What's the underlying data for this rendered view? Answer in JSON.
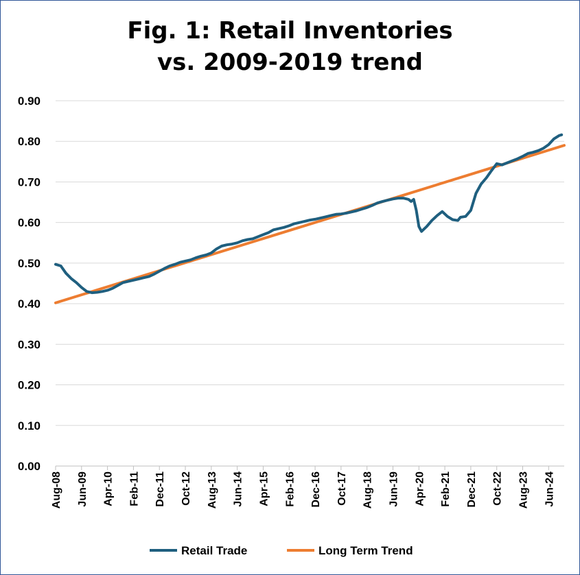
{
  "chart_data": {
    "type": "line",
    "title_line1": "Fig. 1: Retail Inventories",
    "title_line2": "vs. 2009-2019 trend",
    "xlabel": "",
    "ylabel": "",
    "x_start": "Aug-08",
    "x_end": "Dec-24",
    "ylim": [
      0.0,
      0.9
    ],
    "y_ticks": [
      "0.00",
      "0.10",
      "0.20",
      "0.30",
      "0.40",
      "0.50",
      "0.60",
      "0.70",
      "0.80",
      "0.90"
    ],
    "x_tick_labels": [
      "Aug-08",
      "Jun-09",
      "Apr-10",
      "Feb-11",
      "Dec-11",
      "Oct-12",
      "Aug-13",
      "Jun-14",
      "Apr-15",
      "Feb-16",
      "Dec-16",
      "Oct-17",
      "Aug-18",
      "Jun-19",
      "Apr-20",
      "Feb-21",
      "Dec-21",
      "Oct-22",
      "Aug-23",
      "Jun-24"
    ],
    "grid": "horizontal",
    "legend_placement": "bottom",
    "series": [
      {
        "name": "Retail Trade",
        "color": "#1f5f7f",
        "points": [
          [
            "Aug-08",
            0.497
          ],
          [
            "Oct-08",
            0.493
          ],
          [
            "Dec-08",
            0.475
          ],
          [
            "Feb-09",
            0.462
          ],
          [
            "Apr-09",
            0.452
          ],
          [
            "Jun-09",
            0.44
          ],
          [
            "Aug-09",
            0.43
          ],
          [
            "Oct-09",
            0.427
          ],
          [
            "Dec-09",
            0.428
          ],
          [
            "Feb-10",
            0.43
          ],
          [
            "Apr-10",
            0.433
          ],
          [
            "Jun-10",
            0.438
          ],
          [
            "Aug-10",
            0.445
          ],
          [
            "Oct-10",
            0.452
          ],
          [
            "Dec-10",
            0.455
          ],
          [
            "Feb-11",
            0.458
          ],
          [
            "Apr-11",
            0.461
          ],
          [
            "Jun-11",
            0.464
          ],
          [
            "Aug-11",
            0.467
          ],
          [
            "Oct-11",
            0.473
          ],
          [
            "Dec-11",
            0.48
          ],
          [
            "Feb-12",
            0.487
          ],
          [
            "Apr-12",
            0.493
          ],
          [
            "Jun-12",
            0.497
          ],
          [
            "Aug-12",
            0.502
          ],
          [
            "Oct-12",
            0.505
          ],
          [
            "Dec-12",
            0.508
          ],
          [
            "Feb-13",
            0.513
          ],
          [
            "Apr-13",
            0.517
          ],
          [
            "Jun-13",
            0.52
          ],
          [
            "Aug-13",
            0.525
          ],
          [
            "Oct-13",
            0.535
          ],
          [
            "Dec-13",
            0.542
          ],
          [
            "Feb-14",
            0.545
          ],
          [
            "Apr-14",
            0.547
          ],
          [
            "Jun-14",
            0.55
          ],
          [
            "Aug-14",
            0.555
          ],
          [
            "Oct-14",
            0.558
          ],
          [
            "Dec-14",
            0.56
          ],
          [
            "Feb-15",
            0.565
          ],
          [
            "Apr-15",
            0.57
          ],
          [
            "Jun-15",
            0.575
          ],
          [
            "Aug-15",
            0.582
          ],
          [
            "Oct-15",
            0.585
          ],
          [
            "Dec-15",
            0.588
          ],
          [
            "Feb-16",
            0.592
          ],
          [
            "Apr-16",
            0.597
          ],
          [
            "Jun-16",
            0.6
          ],
          [
            "Aug-16",
            0.603
          ],
          [
            "Oct-16",
            0.606
          ],
          [
            "Dec-16",
            0.608
          ],
          [
            "Feb-17",
            0.611
          ],
          [
            "Apr-17",
            0.614
          ],
          [
            "Jun-17",
            0.617
          ],
          [
            "Aug-17",
            0.62
          ],
          [
            "Oct-17",
            0.621
          ],
          [
            "Dec-17",
            0.623
          ],
          [
            "Feb-18",
            0.626
          ],
          [
            "Apr-18",
            0.629
          ],
          [
            "Jun-18",
            0.633
          ],
          [
            "Aug-18",
            0.637
          ],
          [
            "Oct-18",
            0.642
          ],
          [
            "Dec-18",
            0.648
          ],
          [
            "Feb-19",
            0.652
          ],
          [
            "Apr-19",
            0.655
          ],
          [
            "Jun-19",
            0.658
          ],
          [
            "Aug-19",
            0.66
          ],
          [
            "Oct-19",
            0.66
          ],
          [
            "Dec-19",
            0.657
          ],
          [
            "Jan-20",
            0.652
          ],
          [
            "Feb-20",
            0.657
          ],
          [
            "Mar-20",
            0.63
          ],
          [
            "Apr-20",
            0.59
          ],
          [
            "May-20",
            0.578
          ],
          [
            "Jul-20",
            0.59
          ],
          [
            "Sep-20",
            0.605
          ],
          [
            "Nov-20",
            0.617
          ],
          [
            "Jan-21",
            0.627
          ],
          [
            "Mar-21",
            0.615
          ],
          [
            "May-21",
            0.607
          ],
          [
            "Jul-21",
            0.605
          ],
          [
            "Aug-21",
            0.613
          ],
          [
            "Oct-21",
            0.615
          ],
          [
            "Dec-21",
            0.63
          ],
          [
            "Feb-22",
            0.672
          ],
          [
            "Apr-22",
            0.695
          ],
          [
            "Jun-22",
            0.71
          ],
          [
            "Aug-22",
            0.728
          ],
          [
            "Oct-22",
            0.745
          ],
          [
            "Dec-22",
            0.742
          ],
          [
            "Feb-23",
            0.747
          ],
          [
            "Apr-23",
            0.752
          ],
          [
            "Jun-23",
            0.757
          ],
          [
            "Aug-23",
            0.763
          ],
          [
            "Oct-23",
            0.77
          ],
          [
            "Dec-23",
            0.773
          ],
          [
            "Feb-24",
            0.777
          ],
          [
            "Apr-24",
            0.783
          ],
          [
            "Jun-24",
            0.792
          ],
          [
            "Aug-24",
            0.806
          ],
          [
            "Oct-24",
            0.814
          ],
          [
            "Nov-24",
            0.816
          ]
        ]
      },
      {
        "name": "Long Term Trend",
        "color": "#ed7d31",
        "points": [
          [
            "Aug-08",
            0.402
          ],
          [
            "Dec-24",
            0.79
          ]
        ]
      }
    ]
  }
}
